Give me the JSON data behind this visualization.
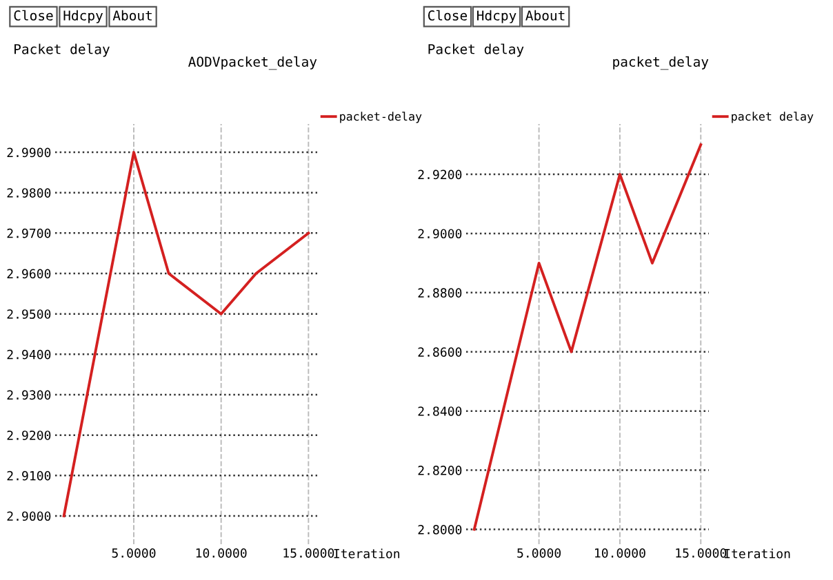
{
  "chart_data": [
    {
      "type": "line",
      "title": "AODVpacket_delay",
      "ylabel": "Packet delay",
      "xlabel": "Iteration",
      "annotations": [
        "Close",
        "Hdcpy",
        "About"
      ],
      "x": [
        1,
        5,
        7,
        10,
        12,
        15
      ],
      "series": [
        {
          "name": "packet-delay",
          "color": "#d42020",
          "values": [
            2.9,
            2.99,
            2.96,
            2.95,
            2.96,
            2.97
          ]
        }
      ],
      "xlim": [
        0.5,
        15.5
      ],
      "ylim": [
        2.893,
        2.997
      ],
      "xticks": [
        {
          "value": 5,
          "label": "5.0000"
        },
        {
          "value": 10,
          "label": "10.0000"
        },
        {
          "value": 15,
          "label": "15.0000"
        }
      ],
      "yticks": [
        {
          "value": 2.9,
          "label": "2.9000"
        },
        {
          "value": 2.91,
          "label": "2.9100"
        },
        {
          "value": 2.92,
          "label": "2.9200"
        },
        {
          "value": 2.93,
          "label": "2.9300"
        },
        {
          "value": 2.94,
          "label": "2.9400"
        },
        {
          "value": 2.95,
          "label": "2.9500"
        },
        {
          "value": 2.96,
          "label": "2.9600"
        },
        {
          "value": 2.97,
          "label": "2.9700"
        },
        {
          "value": 2.98,
          "label": "2.9800"
        },
        {
          "value": 2.99,
          "label": "2.9900"
        }
      ],
      "grid": true,
      "legend": "top right",
      "marker": "none",
      "line_style": "solid"
    },
    {
      "type": "line",
      "title": "packet_delay",
      "ylabel": "Packet delay",
      "xlabel": "Iteration",
      "annotations": [
        "Close",
        "Hdcpy",
        "About"
      ],
      "x": [
        1,
        5,
        7,
        10,
        12,
        15
      ],
      "series": [
        {
          "name": "packet delay",
          "color": "#d42020",
          "values": [
            2.8,
            2.89,
            2.86,
            2.92,
            2.89,
            2.93
          ]
        }
      ],
      "xlim": [
        0.5,
        15.5
      ],
      "ylim": [
        2.795,
        2.937
      ],
      "xticks": [
        {
          "value": 5,
          "label": "5.0000"
        },
        {
          "value": 10,
          "label": "10.0000"
        },
        {
          "value": 15,
          "label": "15.0000"
        }
      ],
      "yticks": [
        {
          "value": 2.8,
          "label": "2.8000"
        },
        {
          "value": 2.82,
          "label": "2.8200"
        },
        {
          "value": 2.84,
          "label": "2.8400"
        },
        {
          "value": 2.86,
          "label": "2.8600"
        },
        {
          "value": 2.88,
          "label": "2.8800"
        },
        {
          "value": 2.9,
          "label": "2.9000"
        },
        {
          "value": 2.92,
          "label": "2.9200"
        }
      ],
      "grid": true,
      "legend": "top right",
      "marker": "none",
      "line_style": "solid"
    }
  ]
}
